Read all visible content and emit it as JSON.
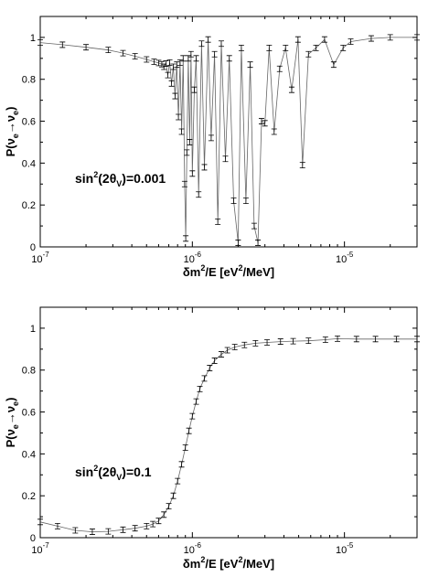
{
  "chart_data": [
    {
      "type": "line",
      "xscale": "log",
      "xlim": [
        1e-07,
        3e-05
      ],
      "ylim": [
        0,
        1.1
      ],
      "grid": false,
      "x_ticks": [
        {
          "value": 1e-07,
          "base": "10",
          "exp": "-7"
        },
        {
          "value": 1e-06,
          "base": "10",
          "exp": "-6"
        },
        {
          "value": 1e-05,
          "base": "10",
          "exp": "-5"
        }
      ],
      "y_ticks": [
        {
          "value": 0,
          "label": "0"
        },
        {
          "value": 0.2,
          "label": "0.2"
        },
        {
          "value": 0.4,
          "label": "0.4"
        },
        {
          "value": 0.6,
          "label": "0.6"
        },
        {
          "value": 0.8,
          "label": "0.8"
        },
        {
          "value": 1,
          "label": "1"
        }
      ],
      "xlabel": {
        "pre": "δm",
        "sup1": "2",
        "mid": "/E [eV",
        "sup2": "2",
        "post": "/MeV]"
      },
      "ylabel": {
        "pre": "P(ν",
        "sub1": "e",
        "mid": "→ν",
        "sub2": "e",
        "post": ")"
      },
      "annotation": {
        "pre": "sin",
        "sup": "2",
        "mid": "(2θ",
        "sub": "V",
        "post": ")=0.001"
      },
      "series": [
        {
          "points": [
            [
              1e-07,
              0.975
            ],
            [
              1.4e-07,
              0.965
            ],
            [
              2e-07,
              0.953
            ],
            [
              2.8e-07,
              0.94
            ],
            [
              3.5e-07,
              0.925
            ],
            [
              4.2e-07,
              0.91
            ],
            [
              5e-07,
              0.895
            ],
            [
              5.6e-07,
              0.884
            ],
            [
              6e-07,
              0.878
            ],
            [
              6.3e-07,
              0.872
            ],
            [
              6.5e-07,
              0.86
            ],
            [
              6.7e-07,
              0.875
            ],
            [
              6.9e-07,
              0.82
            ],
            [
              7.1e-07,
              0.88
            ],
            [
              7.3e-07,
              0.78
            ],
            [
              7.5e-07,
              0.86
            ],
            [
              7.7e-07,
              0.72
            ],
            [
              7.9e-07,
              0.87
            ],
            [
              8.1e-07,
              0.62
            ],
            [
              8.3e-07,
              0.88
            ],
            [
              8.5e-07,
              0.55
            ],
            [
              8.7e-07,
              0.9
            ],
            [
              8.9e-07,
              0.3
            ],
            [
              9.05e-07,
              0.04
            ],
            [
              9.2e-07,
              0.45
            ],
            [
              9.4e-07,
              0.9
            ],
            [
              9.6e-07,
              0.5
            ],
            [
              9.8e-07,
              0.92
            ],
            [
              1e-06,
              0.35
            ],
            [
              1.03e-06,
              0.75
            ],
            [
              1.06e-06,
              0.9
            ],
            [
              1.1e-06,
              0.25
            ],
            [
              1.15e-06,
              0.97
            ],
            [
              1.2e-06,
              0.38
            ],
            [
              1.27e-06,
              0.99
            ],
            [
              1.33e-06,
              0.52
            ],
            [
              1.4e-06,
              0.92
            ],
            [
              1.47e-06,
              0.12
            ],
            [
              1.55e-06,
              0.97
            ],
            [
              1.65e-06,
              0.42
            ],
            [
              1.75e-06,
              0.9
            ],
            [
              1.87e-06,
              0.22
            ],
            [
              2e-06,
              0.02
            ],
            [
              2.1e-06,
              0.95
            ],
            [
              2.25e-06,
              0.22
            ],
            [
              2.4e-06,
              0.87
            ],
            [
              2.55e-06,
              0.1
            ],
            [
              2.7e-06,
              0.02
            ],
            [
              2.85e-06,
              0.6
            ],
            [
              3e-06,
              0.59
            ],
            [
              3.2e-06,
              0.95
            ],
            [
              3.45e-06,
              0.55
            ],
            [
              3.75e-06,
              0.85
            ],
            [
              4.1e-06,
              0.95
            ],
            [
              4.5e-06,
              0.75
            ],
            [
              4.95e-06,
              0.99
            ],
            [
              5.3e-06,
              0.39
            ],
            [
              5.8e-06,
              0.92
            ],
            [
              6.5e-06,
              0.95
            ],
            [
              7.4e-06,
              0.99
            ],
            [
              8.5e-06,
              0.87
            ],
            [
              9.8e-06,
              0.95
            ],
            [
              1.1e-05,
              0.98
            ],
            [
              1.5e-05,
              0.995
            ],
            [
              2e-05,
              1.0
            ],
            [
              3e-05,
              1.0
            ]
          ]
        }
      ]
    },
    {
      "type": "line",
      "xscale": "log",
      "xlim": [
        1e-07,
        3e-05
      ],
      "ylim": [
        0,
        1.1
      ],
      "grid": false,
      "x_ticks": [
        {
          "value": 1e-07,
          "base": "10",
          "exp": "-7"
        },
        {
          "value": 1e-06,
          "base": "10",
          "exp": "-6"
        },
        {
          "value": 1e-05,
          "base": "10",
          "exp": "-5"
        }
      ],
      "y_ticks": [
        {
          "value": 0,
          "label": "0"
        },
        {
          "value": 0.2,
          "label": "0.2"
        },
        {
          "value": 0.4,
          "label": "0.4"
        },
        {
          "value": 0.6,
          "label": "0.6"
        },
        {
          "value": 0.8,
          "label": "0.8"
        },
        {
          "value": 1,
          "label": "1"
        }
      ],
      "xlabel": {
        "pre": "δm",
        "sup1": "2",
        "mid": "/E [eV",
        "sup2": "2",
        "post": "/MeV]"
      },
      "ylabel": {
        "pre": "P(ν",
        "sub1": "e",
        "mid": "→ν",
        "sub2": "e",
        "post": ")"
      },
      "annotation": {
        "pre": "sin",
        "sup": "2",
        "mid": "(2θ",
        "sub": "V",
        "post": ")=0.1"
      },
      "series": [
        {
          "points": [
            [
              1e-07,
              0.075
            ],
            [
              1.3e-07,
              0.055
            ],
            [
              1.7e-07,
              0.035
            ],
            [
              2.2e-07,
              0.028
            ],
            [
              2.8e-07,
              0.03
            ],
            [
              3.5e-07,
              0.038
            ],
            [
              4.2e-07,
              0.045
            ],
            [
              5e-07,
              0.055
            ],
            [
              5.5e-07,
              0.065
            ],
            [
              6e-07,
              0.08
            ],
            [
              6.5e-07,
              0.11
            ],
            [
              7e-07,
              0.15
            ],
            [
              7.5e-07,
              0.2
            ],
            [
              8e-07,
              0.27
            ],
            [
              8.5e-07,
              0.35
            ],
            [
              9e-07,
              0.43
            ],
            [
              9.5e-07,
              0.51
            ],
            [
              1e-06,
              0.58
            ],
            [
              1.06e-06,
              0.65
            ],
            [
              1.12e-06,
              0.71
            ],
            [
              1.2e-06,
              0.76
            ],
            [
              1.3e-06,
              0.81
            ],
            [
              1.4e-06,
              0.845
            ],
            [
              1.55e-06,
              0.875
            ],
            [
              1.7e-06,
              0.895
            ],
            [
              1.9e-06,
              0.91
            ],
            [
              2.2e-06,
              0.92
            ],
            [
              2.6e-06,
              0.928
            ],
            [
              3.1e-06,
              0.932
            ],
            [
              3.8e-06,
              0.936
            ],
            [
              4.6e-06,
              0.938
            ],
            [
              5.8e-06,
              0.94
            ],
            [
              7.5e-06,
              0.945
            ],
            [
              9e-06,
              0.95
            ],
            [
              1.2e-05,
              0.948
            ],
            [
              1.6e-05,
              0.948
            ],
            [
              2.2e-05,
              0.948
            ],
            [
              3e-05,
              0.948
            ]
          ]
        }
      ]
    }
  ]
}
